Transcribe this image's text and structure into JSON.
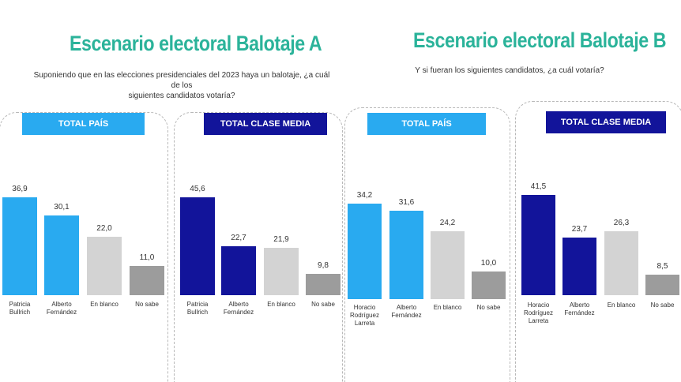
{
  "title_a": "Escenario electoral Balotaje A",
  "subtitle_a": "Suponiendo que en las elecciones presidenciales del 2023 haya un balotaje, ¿a cuál de los\nsiguientes candidatos votaría?",
  "title_b": "Escenario electoral Balotaje B",
  "subtitle_b": "Y si fueran los siguientes candidatos, ¿a cuál votaría?",
  "colors": {
    "title": "#2bb39a",
    "total_pais": "#29aaf0",
    "clase_media": "#12149a",
    "en_blanco": "#d3d3d3",
    "no_sabe": "#9c9c9c"
  },
  "chart_data": [
    {
      "type": "bar",
      "title": "TOTAL PAÍS",
      "categories": [
        "Patricia Bullrich",
        "Alberto Fernández",
        "En blanco",
        "No sabe"
      ],
      "values": [
        36.9,
        30.1,
        22.0,
        11.0
      ],
      "labels": [
        "36,9",
        "30,1",
        "22,0",
        "11,0"
      ],
      "colors": [
        "#29aaf0",
        "#29aaf0",
        "#d3d3d3",
        "#9c9c9c"
      ]
    },
    {
      "type": "bar",
      "title": "TOTAL CLASE MEDIA",
      "categories": [
        "Patricia Bullrich",
        "Alberto Fernández",
        "En blanco",
        "No sabe"
      ],
      "values": [
        45.6,
        22.7,
        21.9,
        9.8
      ],
      "labels": [
        "45,6",
        "22,7",
        "21,9",
        "9,8"
      ],
      "colors": [
        "#12149a",
        "#12149a",
        "#d3d3d3",
        "#9c9c9c"
      ]
    },
    {
      "type": "bar",
      "title": "TOTAL PAÍS",
      "categories": [
        "Horacio Rodríguez Larreta",
        "Alberto Fernández",
        "En blanco",
        "No sabe"
      ],
      "values": [
        34.2,
        31.6,
        24.2,
        10.0
      ],
      "labels": [
        "34,2",
        "31,6",
        "24,2",
        "10,0"
      ],
      "colors": [
        "#29aaf0",
        "#29aaf0",
        "#d3d3d3",
        "#9c9c9c"
      ]
    },
    {
      "type": "bar",
      "title": "TOTAL CLASE MEDIA",
      "categories": [
        "Horacio Rodríguez Larreta",
        "Alberto Fernández",
        "En blanco",
        "No sabe"
      ],
      "values": [
        41.5,
        23.7,
        26.3,
        8.5
      ],
      "labels": [
        "41,5",
        "23,7",
        "26,3",
        "8,5"
      ],
      "colors": [
        "#12149a",
        "#12149a",
        "#d3d3d3",
        "#9c9c9c"
      ]
    }
  ]
}
